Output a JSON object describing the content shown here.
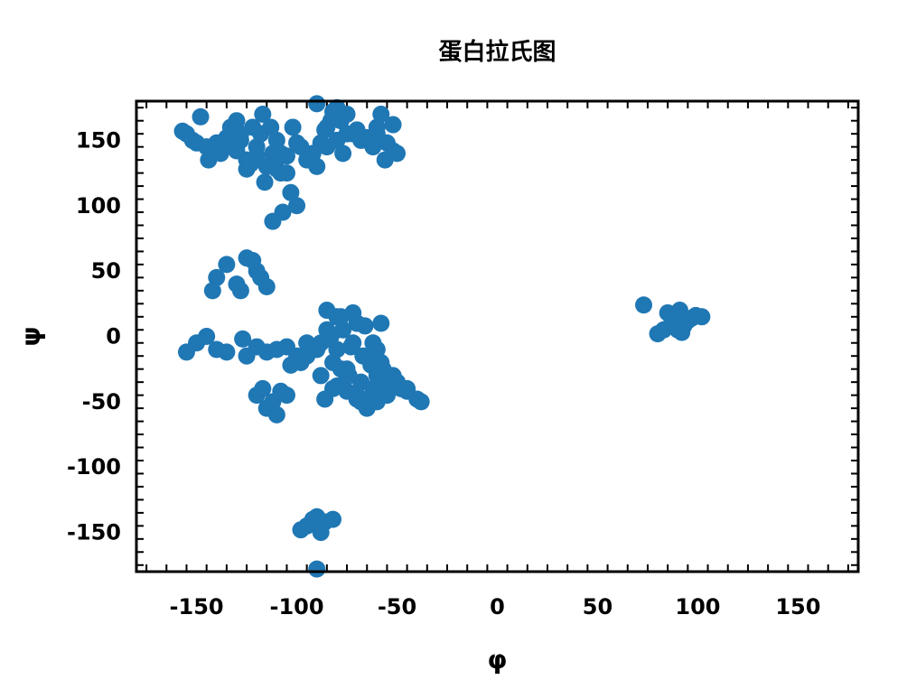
{
  "chart_data": {
    "type": "scatter",
    "title": "蛋白拉氏图",
    "xlabel": "φ",
    "ylabel": "ψ",
    "xlim": [
      -180,
      180
    ],
    "ylim": [
      -180,
      180
    ],
    "xticks": [
      "-150",
      "-100",
      "-50",
      "0",
      "50",
      "100",
      "150"
    ],
    "yticks": [
      "150",
      "100",
      "50",
      "0",
      "-50",
      "-100",
      "-150"
    ],
    "grid": false,
    "marker_color": "#1f77b4",
    "series": [
      {
        "x": [
          -90,
          -82,
          -80,
          -78,
          -85,
          -75,
          -70,
          -65,
          -60,
          -55,
          -50,
          -52,
          -58,
          -62,
          -68,
          -72,
          -88,
          -92,
          -95,
          -85,
          -80,
          -77,
          -60,
          -52,
          -56,
          -65,
          -75,
          -80,
          -83,
          -86,
          -90,
          -157,
          -155,
          -152,
          -150,
          -148,
          -145,
          -144,
          -140,
          -138,
          -135,
          -132,
          -130,
          -128,
          -125,
          -122,
          -120,
          -118,
          -115,
          -112,
          -110,
          -108,
          -105,
          -102,
          -100,
          -98,
          -120,
          -125,
          -130,
          -117,
          -113,
          -110,
          -108,
          -105,
          -103,
          -100,
          -107,
          -112,
          -116,
          -123,
          -128,
          -133,
          -137,
          -130,
          -135,
          -125,
          -120,
          -118,
          -115,
          -140,
          -142,
          -128,
          -122,
          -155,
          -150,
          -145,
          -140,
          -135,
          -127,
          -125,
          -120,
          -115,
          -110,
          -105,
          -100,
          -98,
          -95,
          -90,
          -85,
          -82,
          -80,
          -78,
          -75,
          -72,
          -70,
          -68,
          -65,
          -62,
          -60,
          -58,
          -55,
          -52,
          -50,
          -48,
          -45,
          -40,
          -38,
          -83,
          -77,
          -73,
          -70,
          -67,
          -63,
          -60,
          -57,
          -95,
          -88,
          -80,
          -75,
          -70,
          -65,
          -60,
          -55,
          -50,
          -45,
          -85,
          -80,
          -75,
          -70,
          -65,
          -60,
          -55,
          -78,
          -72,
          -66,
          -62,
          -58,
          -86,
          -82,
          -74,
          -68,
          -103,
          -99,
          -94,
          -91,
          -88,
          -84,
          -120,
          -117,
          -115,
          -112,
          -110,
          -108,
          -105,
          -98,
          -95,
          -92,
          -90,
          -88,
          -86,
          -82,
          -90,
          73,
          80,
          83,
          85,
          87,
          89,
          91,
          93,
          95,
          97,
          99,
          102,
          90,
          92
        ],
        "y": [
          178,
          172,
          168,
          165,
          160,
          155,
          158,
          150,
          155,
          148,
          140,
          162,
          170,
          145,
          150,
          155,
          148,
          140,
          135,
          145,
          150,
          140,
          160,
          142,
          135,
          152,
          170,
          175,
          165,
          158,
          130,
          157,
          155,
          150,
          148,
          168,
          145,
          135,
          148,
          140,
          152,
          145,
          165,
          150,
          128,
          160,
          145,
          155,
          130,
          140,
          150,
          125,
          138,
          160,
          148,
          145,
          138,
          135,
          142,
          170,
          160,
          128,
          140,
          125,
          110,
          100,
          95,
          88,
          118,
          132,
          155,
          160,
          148,
          40,
          55,
          60,
          50,
          45,
          38,
          45,
          35,
          35,
          58,
          -12,
          -5,
          0,
          -10,
          -12,
          -2,
          -15,
          -8,
          -12,
          -10,
          -8,
          -15,
          -20,
          -15,
          -10,
          5,
          -20,
          15,
          -25,
          -30,
          -5,
          10,
          -35,
          -15,
          -40,
          -10,
          -20,
          -45,
          -30,
          -35,
          -40,
          -42,
          -48,
          -50,
          0,
          5,
          -8,
          10,
          -15,
          -22,
          -30,
          -25,
          -5,
          -30,
          -38,
          -42,
          -45,
          -48,
          -38,
          -45,
          -35,
          -40,
          20,
          -10,
          -25,
          -48,
          -55,
          -50,
          -35,
          15,
          18,
          8,
          -5,
          10,
          -48,
          -40,
          -30,
          -50,
          -22,
          -18,
          -12,
          -8,
          -5,
          -2,
          -45,
          -40,
          -55,
          -50,
          -60,
          -42,
          -45,
          -148,
          -145,
          -140,
          -138,
          -150,
          -142,
          -140,
          -178,
          24,
          2,
          5,
          18,
          10,
          15,
          20,
          8,
          12,
          14,
          16,
          15,
          5,
          3
        ]
      }
    ]
  }
}
